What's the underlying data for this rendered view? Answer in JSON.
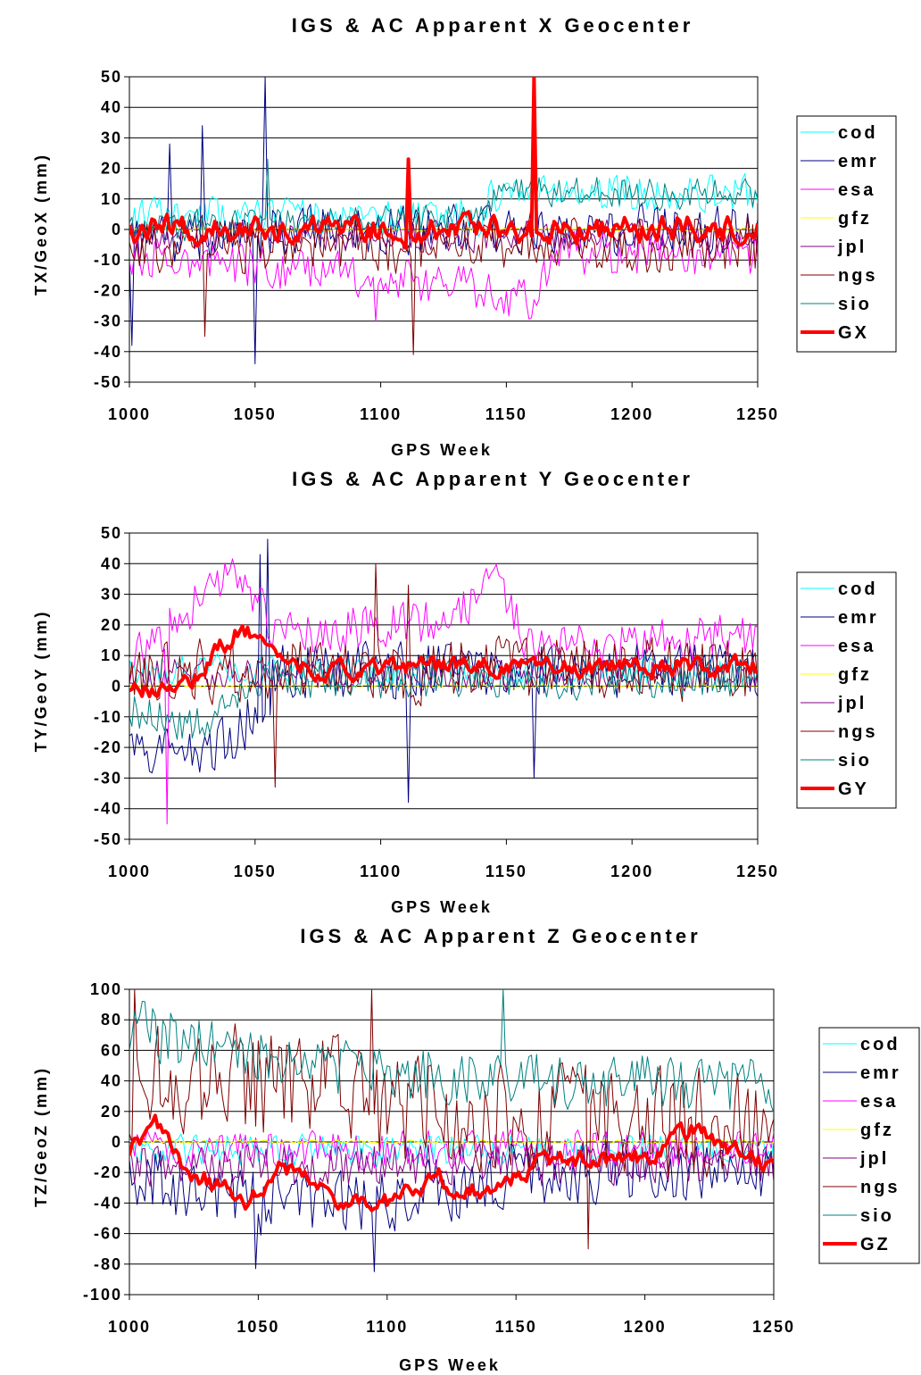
{
  "chart_data": [
    {
      "type": "line",
      "title": "IGS & AC Apparent X Geocenter",
      "xlabel": "GPS Week",
      "ylabel": "TX/GeoX (mm)",
      "xlim": [
        1000,
        1250
      ],
      "ylim": [
        -50,
        50
      ],
      "xticks": [
        "1000",
        "1050",
        "1100",
        "1150",
        "1200",
        "1250"
      ],
      "yticks": [
        "50",
        "40",
        "30",
        "20",
        "10",
        "0",
        "-10",
        "-20",
        "-30",
        "-40",
        "-50"
      ],
      "grid": "horizontal",
      "legend_position": "right",
      "series": [
        {
          "name": "cod",
          "color": "#00ffff",
          "amp": 6,
          "offset": 4,
          "bias": [
            [
              1000,
              0
            ],
            [
              1140,
              0
            ],
            [
              1145,
              8
            ],
            [
              1250,
              8
            ]
          ],
          "spikes": [],
          "width": 1,
          "seed": 11
        },
        {
          "name": "emr",
          "color": "#000080",
          "amp": 8,
          "offset": 0,
          "bias": [
            [
              1000,
              -5
            ],
            [
              1060,
              0
            ],
            [
              1250,
              0
            ]
          ],
          "spikes": [
            [
              1054,
              50
            ],
            [
              1050,
              -44
            ],
            [
              1029,
              34
            ],
            [
              1016,
              28
            ],
            [
              1001,
              -38
            ]
          ],
          "width": 1,
          "seed": 12
        },
        {
          "name": "esa",
          "color": "#ff00ff",
          "amp": 7,
          "offset": -8,
          "bias": [
            [
              1000,
              0
            ],
            [
              1130,
              -10
            ],
            [
              1160,
              -15
            ],
            [
              1170,
              0
            ],
            [
              1250,
              0
            ]
          ],
          "spikes": [
            [
              1098,
              -30
            ]
          ],
          "width": 1,
          "seed": 13
        },
        {
          "name": "gfz",
          "color": "#ffff00",
          "amp": 0.5,
          "offset": 0,
          "bias": [],
          "spikes": [],
          "width": 1,
          "seed": 14
        },
        {
          "name": "jpl",
          "color": "#800080",
          "amp": 5,
          "offset": -2,
          "bias": [],
          "spikes": [],
          "width": 1,
          "seed": 15
        },
        {
          "name": "ngs",
          "color": "#800000",
          "amp": 9,
          "offset": -5,
          "bias": [],
          "spikes": [
            [
              1113,
              -41
            ],
            [
              1030,
              -35
            ]
          ],
          "width": 1,
          "seed": 16
        },
        {
          "name": "sio",
          "color": "#008080",
          "amp": 5,
          "offset": 3,
          "bias": [
            [
              1000,
              -2
            ],
            [
              1140,
              2
            ],
            [
              1150,
              10
            ],
            [
              1250,
              8
            ]
          ],
          "spikes": [
            [
              1055,
              23
            ]
          ],
          "width": 1,
          "seed": 17
        },
        {
          "name": "GX",
          "color": "#ff0000",
          "amp": 4,
          "offset": 0,
          "bias": [],
          "spikes": [
            [
              1161,
              50
            ],
            [
              1111,
              23
            ]
          ],
          "width": 4,
          "seed": 18
        }
      ]
    },
    {
      "type": "line",
      "title": "IGS & AC Apparent Y Geocenter",
      "xlabel": "GPS Week",
      "ylabel": "TY/GeoY (mm)",
      "xlim": [
        1000,
        1250
      ],
      "ylim": [
        -50,
        50
      ],
      "xticks": [
        "1000",
        "1050",
        "1100",
        "1150",
        "1200",
        "1250"
      ],
      "yticks": [
        "50",
        "40",
        "30",
        "20",
        "10",
        "0",
        "-10",
        "-20",
        "-30",
        "-40",
        "-50"
      ],
      "grid": "horizontal",
      "legend_position": "right",
      "series": [
        {
          "name": "cod",
          "color": "#00ffff",
          "amp": 5,
          "offset": 5,
          "bias": [],
          "spikes": [],
          "width": 1,
          "seed": 21
        },
        {
          "name": "emr",
          "color": "#000080",
          "amp": 9,
          "offset": 0,
          "bias": [
            [
              1000,
              -25
            ],
            [
              1040,
              -20
            ],
            [
              1060,
              5
            ],
            [
              1250,
              5
            ]
          ],
          "spikes": [
            [
              1055,
              48
            ],
            [
              1052,
              43
            ],
            [
              1111,
              -38
            ],
            [
              1161,
              -30
            ]
          ],
          "width": 1,
          "seed": 22
        },
        {
          "name": "esa",
          "color": "#ff00ff",
          "amp": 7,
          "offset": 12,
          "bias": [
            [
              1000,
              -5
            ],
            [
              1040,
              25
            ],
            [
              1060,
              5
            ],
            [
              1130,
              10
            ],
            [
              1145,
              25
            ],
            [
              1160,
              0
            ],
            [
              1250,
              5
            ]
          ],
          "spikes": [
            [
              1015,
              -45
            ]
          ],
          "width": 1,
          "seed": 23
        },
        {
          "name": "gfz",
          "color": "#ffff00",
          "amp": 0.5,
          "offset": 0,
          "bias": [],
          "spikes": [],
          "width": 1,
          "seed": 24
        },
        {
          "name": "jpl",
          "color": "#800080",
          "amp": 5,
          "offset": 4,
          "bias": [],
          "spikes": [],
          "width": 1,
          "seed": 25
        },
        {
          "name": "ngs",
          "color": "#800000",
          "amp": 10,
          "offset": 5,
          "bias": [],
          "spikes": [
            [
              1098,
              40
            ],
            [
              1111,
              33
            ],
            [
              1058,
              -33
            ]
          ],
          "width": 1,
          "seed": 26
        },
        {
          "name": "sio",
          "color": "#008080",
          "amp": 6,
          "offset": 2,
          "bias": [
            [
              1000,
              -10
            ],
            [
              1030,
              -15
            ],
            [
              1050,
              0
            ],
            [
              1250,
              0
            ]
          ],
          "spikes": [],
          "width": 1,
          "seed": 27
        },
        {
          "name": "GY",
          "color": "#ff0000",
          "amp": 3,
          "offset": 4,
          "bias": [
            [
              1000,
              -5
            ],
            [
              1020,
              -5
            ],
            [
              1045,
              15
            ],
            [
              1055,
              10
            ],
            [
              1065,
              2
            ],
            [
              1250,
              2
            ]
          ],
          "spikes": [],
          "width": 4,
          "seed": 28
        }
      ]
    },
    {
      "type": "line",
      "title": "IGS & AC Apparent Z Geocenter",
      "xlabel": "GPS Week",
      "ylabel": "TZ/GeoZ (mm)",
      "xlim": [
        1000,
        1250
      ],
      "ylim": [
        -100,
        100
      ],
      "xticks": [
        "1000",
        "1050",
        "1100",
        "1150",
        "1200",
        "1250"
      ],
      "yticks": [
        "100",
        "80",
        "60",
        "40",
        "20",
        "0",
        "-20",
        "-40",
        "-60",
        "-80",
        "-100"
      ],
      "grid": "horizontal",
      "legend_position": "right",
      "series": [
        {
          "name": "cod",
          "color": "#00ffff",
          "amp": 10,
          "offset": -5,
          "bias": [],
          "spikes": [],
          "width": 1,
          "seed": 31
        },
        {
          "name": "emr",
          "color": "#000080",
          "amp": 20,
          "offset": -20,
          "bias": [
            [
              1000,
              0
            ],
            [
              1040,
              -20
            ],
            [
              1100,
              -20
            ],
            [
              1150,
              0
            ],
            [
              1250,
              0
            ]
          ],
          "spikes": [
            [
              1049,
              -83
            ],
            [
              1095,
              -85
            ]
          ],
          "width": 1,
          "seed": 32
        },
        {
          "name": "esa",
          "color": "#ff00ff",
          "amp": 12,
          "offset": -5,
          "bias": [],
          "spikes": [],
          "width": 1,
          "seed": 33
        },
        {
          "name": "gfz",
          "color": "#ffff00",
          "amp": 1,
          "offset": 0,
          "bias": [],
          "spikes": [],
          "width": 1,
          "seed": 34
        },
        {
          "name": "jpl",
          "color": "#800080",
          "amp": 14,
          "offset": -15,
          "bias": [],
          "spikes": [],
          "width": 1,
          "seed": 35
        },
        {
          "name": "ngs",
          "color": "#800000",
          "amp": 35,
          "offset": 10,
          "bias": [
            [
              1000,
              30
            ],
            [
              1060,
              30
            ],
            [
              1110,
              10
            ],
            [
              1250,
              0
            ]
          ],
          "spikes": [
            [
              1002,
              100
            ],
            [
              1094,
              100
            ],
            [
              1178,
              -70
            ]
          ],
          "width": 1,
          "seed": 36
        },
        {
          "name": "sio",
          "color": "#008080",
          "amp": 18,
          "offset": 45,
          "bias": [
            [
              1000,
              30
            ],
            [
              1040,
              15
            ],
            [
              1100,
              0
            ],
            [
              1250,
              -10
            ]
          ],
          "spikes": [
            [
              1145,
              100
            ]
          ],
          "width": 1,
          "seed": 37
        },
        {
          "name": "GZ",
          "color": "#ff0000",
          "amp": 6,
          "offset": -10,
          "bias": [
            [
              1000,
              5
            ],
            [
              1010,
              25
            ],
            [
              1020,
              -5
            ],
            [
              1045,
              -30
            ],
            [
              1060,
              -5
            ],
            [
              1080,
              -25
            ],
            [
              1100,
              -30
            ],
            [
              1120,
              -15
            ],
            [
              1140,
              -25
            ],
            [
              1160,
              0
            ],
            [
              1200,
              0
            ],
            [
              1220,
              18
            ],
            [
              1250,
              -8
            ]
          ],
          "spikes": [],
          "width": 4,
          "seed": 38
        }
      ]
    }
  ]
}
